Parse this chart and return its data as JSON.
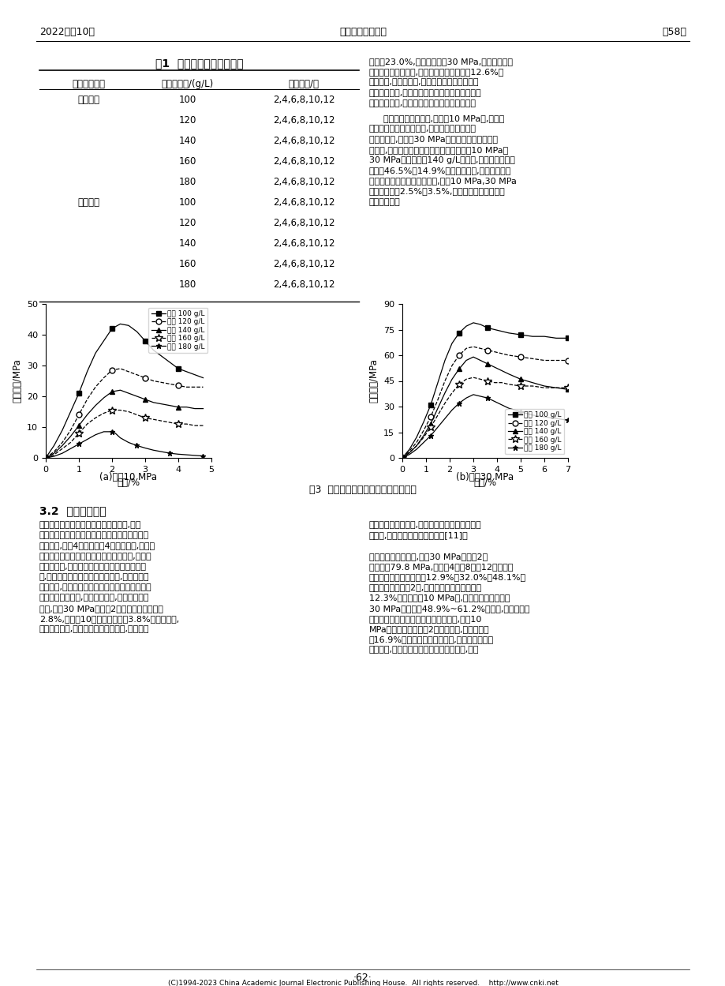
{
  "header_left": "2022年第10期",
  "header_center": "甘肃水利水电技术",
  "header_right": "第58卷",
  "table_title": "表1  两种物理试验方案参数",
  "col1_header": "物理试验类型",
  "col2_header": "硫酸根浓度/(g/L)",
  "col3_header": "交替次数/次",
  "rows": [
    [
      "干湿作用",
      "100",
      "2,4,6,8,10,12"
    ],
    [
      "",
      "120",
      "2,4,6,8,10,12"
    ],
    [
      "",
      "140",
      "2,4,6,8,10,12"
    ],
    [
      "",
      "160",
      "2,4,6,8,10,12"
    ],
    [
      "",
      "180",
      "2,4,6,8,10,12"
    ],
    [
      "冻融作用",
      "100",
      "2,4,6,8,10,12"
    ],
    [
      "",
      "120",
      "2,4,6,8,10,12"
    ],
    [
      "",
      "140",
      "2,4,6,8,10,12"
    ],
    [
      "",
      "160",
      "2,4,6,8,10,12"
    ],
    [
      "",
      "180",
      "2,4,6,8,10,12"
    ]
  ],
  "right_para1_lines": [
    "削弱了23.0%,当围压增大至30 MPa,试样峰值应力",
    "随污水浓度梯次变化,每梯次受剪削弱幅度为12.6%。",
    "由此可知,围压增大时,污水对混凝土试样的侵蚀",
    "作用受到抑制,围压效应不仅可以提高混凝土试样",
    "承载应力水平,也可以增强混凝土抗污水侵蚀。"
  ],
  "right_para2_lines": [
    "从应变特征对比来看,在围压10 MPa下,混凝土",
    "试样均具有应变硬化特征,峰值应力后均出现了",
    "应力下降段,但围压30 MPa下试样具有显著应变软",
    "化特点,峰值应力后下降幅度较低。对比围压10 MPa、",
    "30 MPa在污水浓度140 g/L试样下,应力在峰值后分",
    "别降低46.5%、14.9%。同一围压下,峰值应变在各",
    "污水浓度试样中分布差异较小,围压10 MPa,30 MPa",
    "下分别分布在2.5%、3.5%,污水浓度对应变量值水",
    "平影响较小。"
  ],
  "fig_caption": "图3  污水浓度对混凝土力学性能的影响",
  "cap_a": "(a)围压10 MPa",
  "cap_b": "(b)围压30 MPa",
  "ylabel": "承载应力/MPa",
  "xlabel": "应变/%",
  "legend_labels": [
    "浓度 100 g/L",
    "浓度 120 g/L",
    "浓度 140 g/L",
    "浓度 160 g/L",
    "浓度 180 g/L"
  ],
  "sec32_title": "3.2  交替次数影响",
  "sec32_left_lines": [
    "根据不同干湿交替次数下力学试验数据,获得",
    "了同一污水浓度环境下干湿次数对混凝土力学水",
    "平的影响,如图4所示。从图4中可以看出,不同交",
    "替次数下试样应力应变趋势特征有所差异,在交替",
    "次数较低时,混凝土峰值应力后脆性破坏特征显",
    "著,具有较快较短的应力应变持续段,而在交替次",
    "数较高时,试样峰值应力后往往具有持续性的应变",
    "塑性段。另一方面,交替次数愈多,试样峰值应变",
    "愈大,围压30 MPa下交替2次试样的峰值应变为",
    "2.8%,而交替10次时峰值应变为3.8%。分析认为,",
    "交替次数愈多,混凝土受干湿作用影响,内部颗粒"
  ],
  "sec32_right_lines": [
    "骨架受污水侵蚀作用,骨架松动性以及承载稳定性",
    "均降低,具有较强的塑性承载应变[11]。",
    "",
    "从峰值应力对比来看,围压30 MPa下交替2次",
    "时试样为79.8 MPa,而交替4次、8次和12次时试样",
    "峰值应力较之分别减少了12.9%、32.0%和48.1%。",
    "当干湿作用每递增2次,试样峰值应力平均减少了",
    "12.3%。当围压为10 MPa时,峰值应力整体较围压",
    "30 MPa下减少了48.9%~61.2%。同时,围压效应也",
    "减弱了干湿循环对承载应力的负面影响,围压10",
    "MPa下峰值应力随干湿2梯次的变化,具有平均降",
    "幅16.9%。由于湿作用影响可知,灌渠混凝土在污",
    "水环境下,应避免混凝土处于干湿交替环境,减少"
  ],
  "footer_page": "·62·",
  "footer_copy": "(C)1994-2023 China Academic Journal Electronic Publishing House.  All rights reserved.    http://www.cnki.net",
  "fig3a": {
    "x100": [
      0,
      0.25,
      0.5,
      0.75,
      1.0,
      1.25,
      1.5,
      1.75,
      2.0,
      2.25,
      2.5,
      2.75,
      3.0,
      3.25,
      3.5,
      3.75,
      4.0,
      4.25,
      4.5,
      4.75
    ],
    "y100": [
      0,
      4,
      9,
      15,
      21,
      28,
      34,
      38,
      42,
      43.5,
      43,
      41,
      38,
      35,
      33,
      31,
      29,
      28,
      27,
      26
    ],
    "x120": [
      0,
      0.25,
      0.5,
      0.75,
      1.0,
      1.25,
      1.5,
      1.75,
      2.0,
      2.25,
      2.5,
      2.75,
      3.0,
      3.25,
      3.5,
      3.75,
      4.0,
      4.25,
      4.5,
      4.75
    ],
    "y120": [
      0,
      2,
      5,
      9,
      14,
      19,
      23,
      26,
      28.5,
      29,
      28,
      27,
      26,
      25,
      24.5,
      24,
      23.5,
      23,
      23,
      23
    ],
    "x140": [
      0,
      0.25,
      0.5,
      0.75,
      1.0,
      1.25,
      1.5,
      1.75,
      2.0,
      2.25,
      2.5,
      2.75,
      3.0,
      3.25,
      3.5,
      3.75,
      4.0,
      4.25,
      4.5,
      4.75
    ],
    "y140": [
      0,
      1.5,
      4,
      7,
      10.5,
      14,
      17,
      19.5,
      21.5,
      22,
      21,
      20,
      19,
      18,
      17.5,
      17,
      16.5,
      16.5,
      16,
      16
    ],
    "x160": [
      0,
      0.25,
      0.5,
      0.75,
      1.0,
      1.25,
      1.5,
      1.75,
      2.0,
      2.25,
      2.5,
      2.75,
      3.0,
      3.25,
      3.5,
      3.75,
      4.0,
      4.25,
      4.5,
      4.75
    ],
    "y160": [
      0,
      1,
      3,
      5,
      8,
      11,
      13,
      14.5,
      15.5,
      15.5,
      15,
      14,
      13,
      12.5,
      12,
      11.5,
      11,
      11,
      10.5,
      10.5
    ],
    "x180": [
      0,
      0.25,
      0.5,
      0.75,
      1.0,
      1.25,
      1.5,
      1.75,
      2.0,
      2.1,
      2.25,
      2.5,
      2.75,
      3.0,
      3.25,
      3.5,
      3.75,
      4.0,
      4.25,
      4.5,
      4.75
    ],
    "y180": [
      0,
      0.5,
      1.5,
      3,
      4.5,
      6,
      7.5,
      8.5,
      8.5,
      8,
      6.5,
      5,
      4,
      3.2,
      2.5,
      2,
      1.5,
      1.2,
      1.0,
      0.8,
      0.6
    ]
  },
  "fig3b": {
    "x100": [
      0,
      0.3,
      0.6,
      0.9,
      1.2,
      1.5,
      1.8,
      2.1,
      2.4,
      2.7,
      3.0,
      3.3,
      3.6,
      3.9,
      4.2,
      4.5,
      5.0,
      5.5,
      6.0,
      6.5,
      7.0
    ],
    "y100": [
      0,
      5,
      12,
      21,
      31,
      44,
      57,
      67,
      73,
      77,
      79,
      78,
      76,
      75,
      74,
      73,
      72,
      71,
      71,
      70,
      70
    ],
    "x120": [
      0,
      0.3,
      0.6,
      0.9,
      1.2,
      1.5,
      1.8,
      2.1,
      2.4,
      2.7,
      3.0,
      3.3,
      3.6,
      3.9,
      4.2,
      4.5,
      5.0,
      5.5,
      6.0,
      6.5,
      7.0
    ],
    "y120": [
      0,
      4,
      9,
      16,
      24,
      34,
      45,
      54,
      60,
      64,
      65,
      64,
      63,
      62,
      61,
      60,
      59,
      58,
      57,
      57,
      57
    ],
    "x140": [
      0,
      0.3,
      0.6,
      0.9,
      1.2,
      1.5,
      1.8,
      2.1,
      2.4,
      2.7,
      3.0,
      3.3,
      3.6,
      3.9,
      4.2,
      4.5,
      5.0,
      5.5,
      6.0,
      6.5,
      7.0
    ],
    "y140": [
      0,
      3,
      7,
      13,
      20,
      29,
      38,
      46,
      52,
      57,
      59,
      57,
      55,
      53,
      51,
      49,
      46,
      44,
      42,
      41,
      40
    ],
    "x160": [
      0,
      0.3,
      0.6,
      0.9,
      1.2,
      1.5,
      1.8,
      2.1,
      2.4,
      2.7,
      3.0,
      3.3,
      3.6,
      3.9,
      4.2,
      4.5,
      5.0,
      5.5,
      6.0,
      6.5,
      7.0
    ],
    "y160": [
      0,
      3,
      7,
      12,
      18,
      25,
      32,
      38,
      43,
      46,
      47,
      46,
      45,
      44,
      44,
      43,
      42,
      42,
      41,
      41,
      41
    ],
    "x180": [
      0,
      0.3,
      0.6,
      0.9,
      1.2,
      1.5,
      1.8,
      2.1,
      2.4,
      2.7,
      3.0,
      3.3,
      3.6,
      3.9,
      4.2,
      4.5,
      5.0,
      5.5,
      6.0,
      6.5,
      7.0
    ],
    "y180": [
      0,
      2,
      5,
      9,
      13,
      18,
      23,
      28,
      32,
      35,
      37,
      36,
      35,
      33,
      31,
      29,
      27,
      25,
      24,
      23,
      22
    ]
  }
}
